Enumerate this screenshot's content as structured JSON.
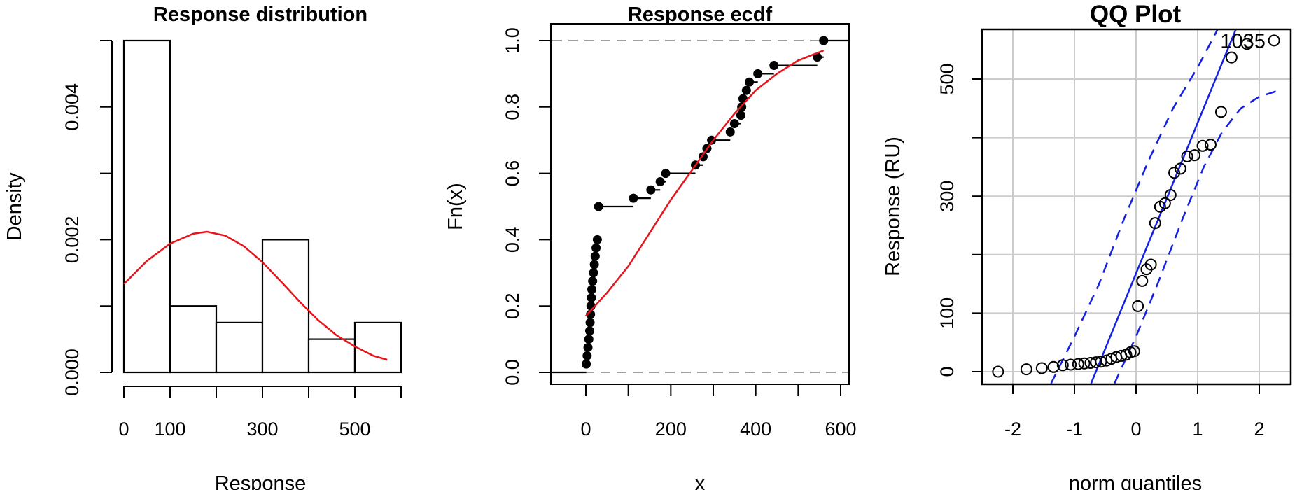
{
  "chart_data": [
    {
      "type": "bar",
      "title": "Response distribution",
      "xlabel": "Response",
      "ylabel": "Density",
      "xlim": [
        0,
        600
      ],
      "ylim": [
        0,
        0.005
      ],
      "x_ticks": [
        0,
        100,
        300,
        500
      ],
      "y_ticks": [
        0.0,
        0.002,
        0.004
      ],
      "y_tick_labels": [
        "0.000",
        "0.002",
        "0.004"
      ],
      "bins": [
        {
          "from": 0,
          "to": 100,
          "density": 0.005
        },
        {
          "from": 100,
          "to": 200,
          "density": 0.001
        },
        {
          "from": 200,
          "to": 300,
          "density": 0.00075
        },
        {
          "from": 300,
          "to": 400,
          "density": 0.002
        },
        {
          "from": 400,
          "to": 500,
          "density": 0.0005
        },
        {
          "from": 500,
          "to": 600,
          "density": 0.00075
        }
      ],
      "curve": {
        "color": "#e8141c",
        "points": [
          [
            0,
            0.00133
          ],
          [
            50,
            0.00168
          ],
          [
            100,
            0.00194
          ],
          [
            150,
            0.00209
          ],
          [
            180,
            0.00212
          ],
          [
            220,
            0.00206
          ],
          [
            260,
            0.0019
          ],
          [
            300,
            0.00166
          ],
          [
            340,
            0.00137
          ],
          [
            380,
            0.00107
          ],
          [
            420,
            0.00079
          ],
          [
            460,
            0.00056
          ],
          [
            500,
            0.00039
          ],
          [
            540,
            0.00025
          ],
          [
            570,
            0.00019
          ]
        ]
      }
    },
    {
      "type": "line",
      "title": "Response ecdf",
      "xlabel": "x",
      "ylabel": "Fn(x)",
      "xlim": [
        -70,
        630
      ],
      "ylim": [
        -0.04,
        1.04
      ],
      "x_ticks": [
        0,
        200,
        400,
        600
      ],
      "y_ticks": [
        0.0,
        0.2,
        0.4,
        0.6,
        0.8,
        1.0
      ],
      "y_tick_labels": [
        "0.0",
        "0.2",
        "0.4",
        "0.6",
        "0.8",
        "1.0"
      ],
      "step_x": [
        1,
        3,
        5,
        7,
        9,
        10,
        11,
        12,
        13,
        14,
        16,
        18,
        20,
        22,
        24,
        27,
        30,
        112,
        153,
        175,
        188,
        258,
        276,
        285,
        296,
        340,
        350,
        365,
        367,
        370,
        378,
        385,
        405,
        443,
        545,
        560
      ],
      "step_y": [
        0.025,
        0.05,
        0.075,
        0.1,
        0.125,
        0.15,
        0.175,
        0.2,
        0.225,
        0.25,
        0.275,
        0.3,
        0.325,
        0.35,
        0.375,
        0.4,
        0.5,
        0.525,
        0.55,
        0.575,
        0.6,
        0.625,
        0.65,
        0.675,
        0.7,
        0.725,
        0.75,
        0.775,
        0.8,
        0.825,
        0.85,
        0.875,
        0.9,
        0.925,
        0.95,
        1.0
      ],
      "curve": {
        "color": "#e8141c",
        "points": [
          [
            0,
            0.17
          ],
          [
            50,
            0.24
          ],
          [
            100,
            0.32
          ],
          [
            150,
            0.42
          ],
          [
            200,
            0.52
          ],
          [
            250,
            0.61
          ],
          [
            300,
            0.7
          ],
          [
            350,
            0.78
          ],
          [
            400,
            0.85
          ],
          [
            450,
            0.9
          ],
          [
            500,
            0.94
          ],
          [
            560,
            0.97
          ]
        ]
      },
      "ref_lines": [
        0,
        1
      ]
    },
    {
      "type": "scatter",
      "title": "QQ Plot",
      "xlabel": "norm quantiles",
      "ylabel": "Response (RU)",
      "xlim": [
        -2.45,
        2.45
      ],
      "ylim": [
        -20,
        590
      ],
      "x_ticks": [
        -2,
        -1,
        0,
        1,
        2
      ],
      "y_ticks": [
        0,
        100,
        300,
        500
      ],
      "grid": true,
      "annotation": {
        "text": "1035",
        "x": 1.28,
        "y": 565
      },
      "points": [
        [
          -2.24,
          0
        ],
        [
          -1.78,
          4
        ],
        [
          -1.53,
          6
        ],
        [
          -1.34,
          8
        ],
        [
          -1.19,
          11
        ],
        [
          -1.06,
          12
        ],
        [
          -0.94,
          13
        ],
        [
          -0.84,
          14
        ],
        [
          -0.74,
          15
        ],
        [
          -0.65,
          16
        ],
        [
          -0.57,
          17
        ],
        [
          -0.48,
          19
        ],
        [
          -0.4,
          22
        ],
        [
          -0.32,
          25
        ],
        [
          -0.24,
          27
        ],
        [
          -0.16,
          29
        ],
        [
          -0.09,
          33
        ],
        [
          -0.03,
          35
        ],
        [
          0.03,
          112
        ],
        [
          0.1,
          155
        ],
        [
          0.17,
          175
        ],
        [
          0.24,
          183
        ],
        [
          0.31,
          254
        ],
        [
          0.39,
          282
        ],
        [
          0.47,
          288
        ],
        [
          0.56,
          302
        ],
        [
          0.62,
          340
        ],
        [
          0.72,
          347
        ],
        [
          0.83,
          368
        ],
        [
          0.95,
          370
        ],
        [
          1.08,
          386
        ],
        [
          1.21,
          388
        ],
        [
          1.38,
          444
        ],
        [
          1.55,
          537
        ],
        [
          1.8,
          560
        ],
        [
          2.24,
          566
        ]
      ],
      "ref_line": {
        "x1": -0.73,
        "y1": -20,
        "x2": 1.64,
        "y2": 590,
        "color": "#1520e6"
      },
      "envelope_upper": [
        [
          -1.38,
          -20
        ],
        [
          -1.0,
          60
        ],
        [
          -0.6,
          150
        ],
        [
          -0.2,
          260
        ],
        [
          0.2,
          360
        ],
        [
          0.6,
          450
        ],
        [
          1.0,
          520
        ],
        [
          1.3,
          580
        ],
        [
          1.35,
          590
        ]
      ],
      "envelope_lower": [
        [
          -0.35,
          -20
        ],
        [
          0.0,
          60
        ],
        [
          0.35,
          150
        ],
        [
          0.75,
          260
        ],
        [
          1.1,
          350
        ],
        [
          1.4,
          410
        ],
        [
          1.7,
          450
        ],
        [
          2.0,
          470
        ],
        [
          2.3,
          480
        ]
      ]
    }
  ]
}
